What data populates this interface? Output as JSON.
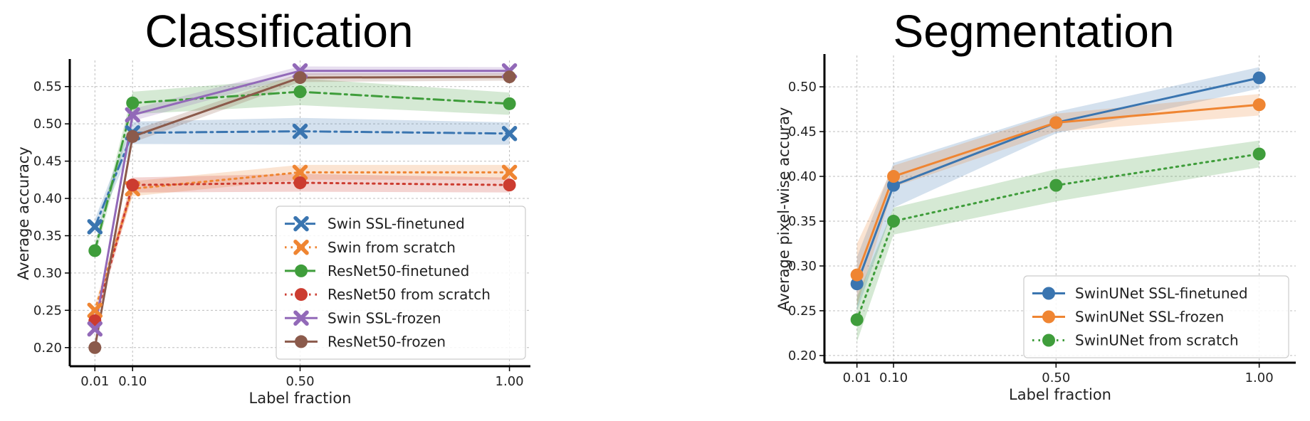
{
  "chart_data": [
    {
      "type": "line",
      "title": "Classification",
      "xlabel": "Label fraction",
      "ylabel": "Average accuracy",
      "x": [
        0.01,
        0.1,
        0.5,
        1.0
      ],
      "x_tick_labels": [
        "0.01",
        "0.10",
        "0.50",
        "1.00"
      ],
      "ylim": [
        0.175,
        0.585
      ],
      "y_ticks": [
        0.2,
        0.25,
        0.3,
        0.35,
        0.4,
        0.45,
        0.5,
        0.55
      ],
      "y_tick_labels": [
        "0.20",
        "0.25",
        "0.30",
        "0.35",
        "0.40",
        "0.45",
        "0.50",
        "0.55"
      ],
      "grid": true,
      "legend_position": "lower-right",
      "series": [
        {
          "name": "Swin SSL-finetuned",
          "values": [
            0.362,
            0.488,
            0.49,
            0.487
          ],
          "band": [
            0.01,
            0.015,
            0.018,
            0.015
          ],
          "color": "#3a75b0",
          "linestyle": "dashdot",
          "marker": "x"
        },
        {
          "name": "Swin from scratch",
          "values": [
            0.25,
            0.413,
            0.435,
            0.435
          ],
          "band": [
            0.008,
            0.01,
            0.01,
            0.01
          ],
          "color": "#ef8532",
          "linestyle": "dotted",
          "marker": "x"
        },
        {
          "name": "ResNet50-finetuned",
          "values": [
            0.33,
            0.528,
            0.543,
            0.527
          ],
          "band": [
            0.01,
            0.015,
            0.018,
            0.015
          ],
          "color": "#3f9d3b",
          "linestyle": "dashdot",
          "marker": "o"
        },
        {
          "name": "ResNet50 from scratch",
          "values": [
            0.236,
            0.418,
            0.421,
            0.418
          ],
          "band": [
            0.008,
            0.01,
            0.012,
            0.01
          ],
          "color": "#cc3c30",
          "linestyle": "dotted",
          "marker": "o"
        },
        {
          "name": "Swin SSL-frozen",
          "values": [
            0.225,
            0.512,
            0.571,
            0.571
          ],
          "band": [
            0.008,
            0.008,
            0.006,
            0.005
          ],
          "color": "#9269b8",
          "linestyle": "solid",
          "marker": "x"
        },
        {
          "name": "ResNet50-frozen",
          "values": [
            0.2,
            0.483,
            0.562,
            0.563
          ],
          "band": [
            0.006,
            0.008,
            0.006,
            0.005
          ],
          "color": "#8b5a4b",
          "linestyle": "solid",
          "marker": "o"
        }
      ]
    },
    {
      "type": "line",
      "title": "Segmentation",
      "xlabel": "Label fraction",
      "ylabel": "Average pixel-wise accuray",
      "x": [
        0.01,
        0.1,
        0.5,
        1.0
      ],
      "x_tick_labels": [
        "0.01",
        "0.10",
        "0.50",
        "1.00"
      ],
      "ylim": [
        0.192,
        0.535
      ],
      "y_ticks": [
        0.2,
        0.25,
        0.3,
        0.35,
        0.4,
        0.45,
        0.5
      ],
      "y_tick_labels": [
        "0.20",
        "0.25",
        "0.30",
        "0.35",
        "0.40",
        "0.45",
        "0.50"
      ],
      "grid": true,
      "legend_position": "lower-right",
      "series": [
        {
          "name": "SwinUNet SSL-finetuned",
          "values": [
            0.28,
            0.39,
            0.46,
            0.51
          ],
          "band": [
            0.03,
            0.025,
            0.012,
            0.012
          ],
          "color": "#3a75b0",
          "linestyle": "solid",
          "marker": "o"
        },
        {
          "name": "SwinUNet SSL-frozen",
          "values": [
            0.29,
            0.4,
            0.46,
            0.48
          ],
          "band": [
            0.035,
            0.012,
            0.01,
            0.012
          ],
          "color": "#ef8532",
          "linestyle": "solid",
          "marker": "o"
        },
        {
          "name": "SwinUNet from scratch",
          "values": [
            0.24,
            0.35,
            0.39,
            0.425
          ],
          "band": [
            0.025,
            0.015,
            0.018,
            0.015
          ],
          "color": "#3f9d3b",
          "linestyle": "dotted",
          "marker": "o"
        }
      ]
    }
  ]
}
